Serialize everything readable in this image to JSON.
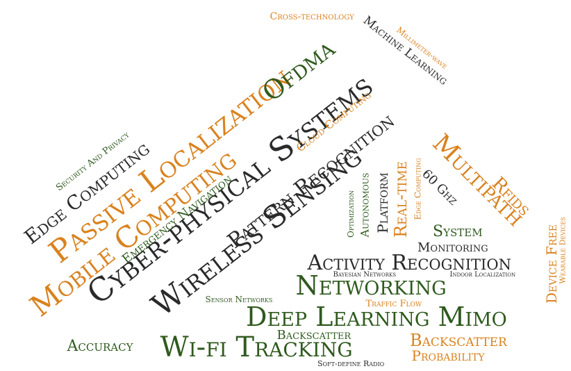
{
  "colors": {
    "dark": "#2a2a2a",
    "green": "#2f5a1e",
    "orange": "#d9821e"
  },
  "words": [
    "Cross-technology",
    "Machine Learning",
    "Millimeter-wave",
    "Passive Localization",
    "Ofdma",
    "Cyber-physical Systems",
    "Cloud Computing",
    "Edge Computing",
    "Security And Privacy",
    "Mobile Computing",
    "Emergency Navigation",
    "Wireless Sensing",
    "Pattern Recognition",
    "Multipath",
    "Optimization",
    "Autonomous",
    "Platform",
    "Real-time",
    "Edge Computing",
    "60 Ghz",
    "Rfids",
    "System",
    "Monitoring",
    "Device Free",
    "Wearable Devices",
    "Activity Recognition",
    "Bayesian Networks",
    "Indoor Localization",
    "Networking",
    "Sensor Networks",
    "Traffic Flow",
    "Deep Learning Mimo",
    "Backscatter",
    "Backscatter",
    "Accuracy",
    "Wi-fi Tracking",
    "Probability",
    "Soft-define Radio"
  ]
}
